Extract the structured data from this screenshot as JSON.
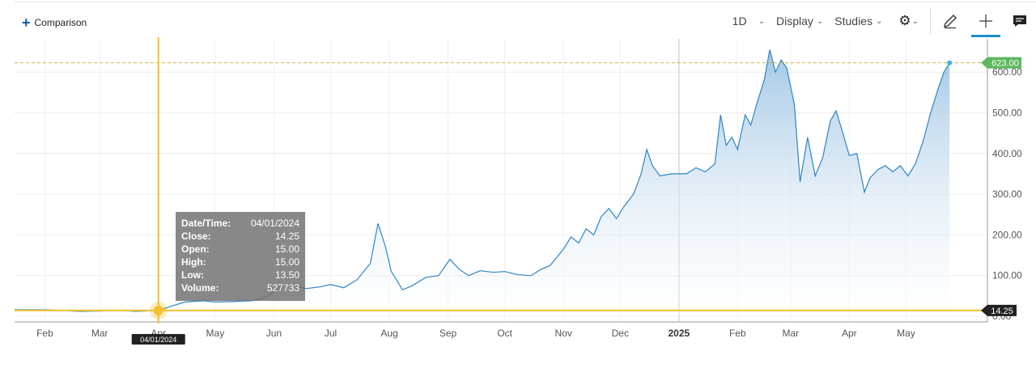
{
  "comparison": {
    "label": "Comparison"
  },
  "toolbar": {
    "interval_label": "1D",
    "display_label": "Display",
    "studies_label": "Studies",
    "colors": {
      "accent": "#1f8ecd"
    }
  },
  "icons": [
    "plus-icon",
    "chevron-down-icon",
    "gear-icon",
    "pencil-icon",
    "crosshair-icon",
    "comment-icon"
  ],
  "tooltip": {
    "date_label": "Date/Time:",
    "date_value": "04/01/2024",
    "close_label": "Close:",
    "close_value": "14.25",
    "open_label": "Open:",
    "open_value": "15.00",
    "high_label": "High:",
    "high_value": "15.00",
    "low_label": "Low:",
    "low_value": "13.50",
    "volume_label": "Volume:",
    "volume_value": "527733"
  },
  "chart_data": {
    "type": "area",
    "x_label_cursor": "04/01/2024",
    "crosshair": {
      "x": "2024-04-01",
      "y": 14.25,
      "label": "14.25"
    },
    "last_price": {
      "value": 623.0,
      "label": "623.00"
    },
    "x_axis": {
      "min": "2024-01-16",
      "max": "2025-06-13",
      "ticks": [
        {
          "date": "2024-02-01",
          "label": "Feb"
        },
        {
          "date": "2024-03-01",
          "label": "Mar"
        },
        {
          "date": "2024-04-01",
          "label": "Apr"
        },
        {
          "date": "2024-05-01",
          "label": "May"
        },
        {
          "date": "2024-06-01",
          "label": "Jun"
        },
        {
          "date": "2024-07-01",
          "label": "Jul"
        },
        {
          "date": "2024-08-01",
          "label": "Aug"
        },
        {
          "date": "2024-09-01",
          "label": "Sep"
        },
        {
          "date": "2024-10-01",
          "label": "Oct"
        },
        {
          "date": "2024-11-01",
          "label": "Nov"
        },
        {
          "date": "2024-12-01",
          "label": "Dec"
        },
        {
          "date": "2025-01-01",
          "label": "2025"
        },
        {
          "date": "2025-02-01",
          "label": "Feb"
        },
        {
          "date": "2025-03-01",
          "label": "Mar"
        },
        {
          "date": "2025-04-01",
          "label": "Apr"
        },
        {
          "date": "2025-05-01",
          "label": "May"
        }
      ]
    },
    "y_axis": {
      "min": 0,
      "max": 680,
      "ticks": [
        {
          "value": 0,
          "label": "0.00"
        },
        {
          "value": 100,
          "label": "100.00"
        },
        {
          "value": 200,
          "label": "200.00"
        },
        {
          "value": 300,
          "label": "300.00"
        },
        {
          "value": 400,
          "label": "400.00"
        },
        {
          "value": 500,
          "label": "500.00"
        },
        {
          "value": 600,
          "label": "600.00"
        }
      ]
    },
    "grid": true,
    "colors": {
      "line": "#2e86c1",
      "fill_top": "#9ec4e4",
      "fill_bottom": "#ffffff",
      "crosshair": "#f2c12e",
      "last_price": "#5cb85c"
    },
    "series": [
      {
        "points": [
          [
            "2024-01-16",
            16
          ],
          [
            "2024-02-01",
            16
          ],
          [
            "2024-02-10",
            14
          ],
          [
            "2024-02-20",
            12
          ],
          [
            "2024-03-01",
            13
          ],
          [
            "2024-03-10",
            15
          ],
          [
            "2024-03-20",
            12
          ],
          [
            "2024-04-01",
            14.25
          ],
          [
            "2024-04-08",
            25
          ],
          [
            "2024-04-15",
            35
          ],
          [
            "2024-04-25",
            38
          ],
          [
            "2024-05-01",
            35
          ],
          [
            "2024-05-10",
            36
          ],
          [
            "2024-05-20",
            38
          ],
          [
            "2024-05-27",
            45
          ],
          [
            "2024-06-01",
            60
          ],
          [
            "2024-06-07",
            80
          ],
          [
            "2024-06-12",
            75
          ],
          [
            "2024-06-18",
            68
          ],
          [
            "2024-06-25",
            72
          ],
          [
            "2024-07-01",
            78
          ],
          [
            "2024-07-08",
            70
          ],
          [
            "2024-07-15",
            90
          ],
          [
            "2024-07-22",
            130
          ],
          [
            "2024-07-26",
            228
          ],
          [
            "2024-07-30",
            170
          ],
          [
            "2024-08-02",
            110
          ],
          [
            "2024-08-08",
            65
          ],
          [
            "2024-08-13",
            75
          ],
          [
            "2024-08-20",
            95
          ],
          [
            "2024-08-27",
            100
          ],
          [
            "2024-09-02",
            140
          ],
          [
            "2024-09-07",
            115
          ],
          [
            "2024-09-12",
            100
          ],
          [
            "2024-09-18",
            112
          ],
          [
            "2024-09-25",
            108
          ],
          [
            "2024-10-01",
            110
          ],
          [
            "2024-10-08",
            102
          ],
          [
            "2024-10-15",
            100
          ],
          [
            "2024-10-20",
            115
          ],
          [
            "2024-10-25",
            125
          ],
          [
            "2024-11-01",
            165
          ],
          [
            "2024-11-05",
            195
          ],
          [
            "2024-11-09",
            180
          ],
          [
            "2024-11-13",
            215
          ],
          [
            "2024-11-17",
            200
          ],
          [
            "2024-11-21",
            245
          ],
          [
            "2024-11-25",
            265
          ],
          [
            "2024-11-29",
            240
          ],
          [
            "2024-12-03",
            270
          ],
          [
            "2024-12-08",
            300
          ],
          [
            "2024-12-12",
            350
          ],
          [
            "2024-12-15",
            410
          ],
          [
            "2024-12-18",
            370
          ],
          [
            "2024-12-22",
            345
          ],
          [
            "2024-12-28",
            350
          ],
          [
            "2025-01-05",
            350
          ],
          [
            "2025-01-10",
            365
          ],
          [
            "2025-01-15",
            355
          ],
          [
            "2025-01-20",
            375
          ],
          [
            "2025-01-23",
            495
          ],
          [
            "2025-01-26",
            420
          ],
          [
            "2025-01-29",
            440
          ],
          [
            "2025-02-01",
            410
          ],
          [
            "2025-02-05",
            495
          ],
          [
            "2025-02-08",
            470
          ],
          [
            "2025-02-11",
            520
          ],
          [
            "2025-02-15",
            580
          ],
          [
            "2025-02-18",
            655
          ],
          [
            "2025-02-21",
            600
          ],
          [
            "2025-02-24",
            630
          ],
          [
            "2025-02-27",
            610
          ],
          [
            "2025-03-03",
            520
          ],
          [
            "2025-03-06",
            330
          ],
          [
            "2025-03-10",
            440
          ],
          [
            "2025-03-14",
            345
          ],
          [
            "2025-03-18",
            390
          ],
          [
            "2025-03-22",
            480
          ],
          [
            "2025-03-25",
            505
          ],
          [
            "2025-03-28",
            460
          ],
          [
            "2025-04-01",
            395
          ],
          [
            "2025-04-05",
            400
          ],
          [
            "2025-04-09",
            305
          ],
          [
            "2025-04-12",
            340
          ],
          [
            "2025-04-16",
            360
          ],
          [
            "2025-04-20",
            370
          ],
          [
            "2025-04-24",
            355
          ],
          [
            "2025-04-28",
            370
          ],
          [
            "2025-05-02",
            345
          ],
          [
            "2025-05-06",
            375
          ],
          [
            "2025-05-10",
            430
          ],
          [
            "2025-05-14",
            500
          ],
          [
            "2025-05-18",
            560
          ],
          [
            "2025-05-21",
            600
          ],
          [
            "2025-05-24",
            623
          ]
        ]
      }
    ]
  }
}
